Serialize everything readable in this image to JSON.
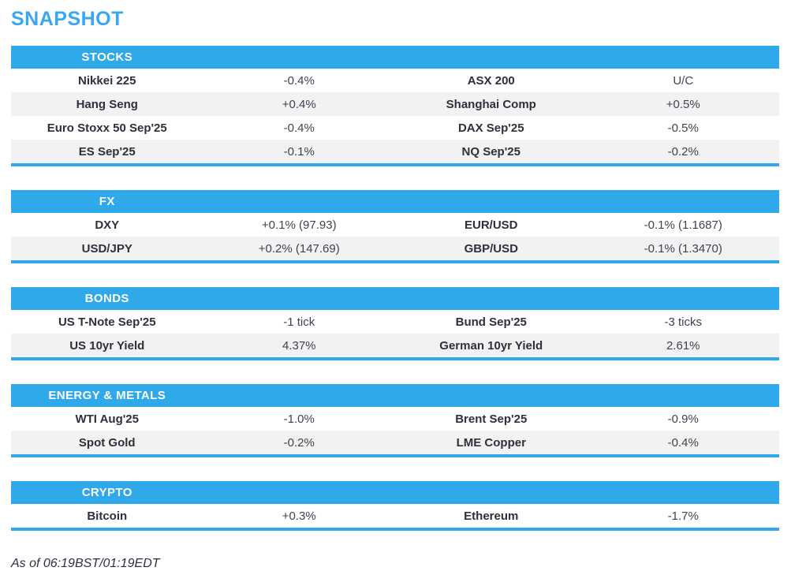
{
  "title": "SNAPSHOT",
  "footer": "As of 06:19BST/01:19EDT",
  "colors": {
    "accent": "#2fa9e9",
    "title_blue": "#3ba6f2",
    "row_alt": "#f2f2f2",
    "label": "#2c313c",
    "value": "#3d4350",
    "header_text": "#ffffff"
  },
  "sections": [
    {
      "title": "STOCKS",
      "rows": [
        [
          {
            "label": "Nikkei 225",
            "value": "-0.4%"
          },
          {
            "label": "ASX 200",
            "value": "U/C"
          }
        ],
        [
          {
            "label": "Hang Seng",
            "value": "+0.4%"
          },
          {
            "label": "Shanghai Comp",
            "value": "+0.5%"
          }
        ],
        [
          {
            "label": "Euro Stoxx 50 Sep'25",
            "value": "-0.4%"
          },
          {
            "label": "DAX Sep'25",
            "value": "-0.5%"
          }
        ],
        [
          {
            "label": "ES Sep'25",
            "value": "-0.1%"
          },
          {
            "label": "NQ Sep'25",
            "value": "-0.2%"
          }
        ]
      ]
    },
    {
      "title": "FX",
      "rows": [
        [
          {
            "label": "DXY",
            "value": "+0.1% (97.93)"
          },
          {
            "label": "EUR/USD",
            "value": "-0.1% (1.1687)"
          }
        ],
        [
          {
            "label": "USD/JPY",
            "value": "+0.2% (147.69)"
          },
          {
            "label": "GBP/USD",
            "value": "-0.1% (1.3470)"
          }
        ]
      ]
    },
    {
      "title": "BONDS",
      "rows": [
        [
          {
            "label": "US T-Note Sep'25",
            "value": "-1 tick"
          },
          {
            "label": "Bund Sep'25",
            "value": "-3 ticks"
          }
        ],
        [
          {
            "label": "US 10yr Yield",
            "value": "4.37%"
          },
          {
            "label": "German 10yr Yield",
            "value": "2.61%"
          }
        ]
      ]
    },
    {
      "title": "ENERGY & METALS",
      "rows": [
        [
          {
            "label": "WTI Aug'25",
            "value": "-1.0%"
          },
          {
            "label": "Brent Sep'25",
            "value": "-0.9%"
          }
        ],
        [
          {
            "label": "Spot Gold",
            "value": "-0.2%"
          },
          {
            "label": "LME Copper",
            "value": "-0.4%"
          }
        ]
      ]
    },
    {
      "title": "CRYPTO",
      "rows": [
        [
          {
            "label": "Bitcoin",
            "value": "+0.3%"
          },
          {
            "label": "Ethereum",
            "value": "-1.7%"
          }
        ]
      ]
    }
  ]
}
